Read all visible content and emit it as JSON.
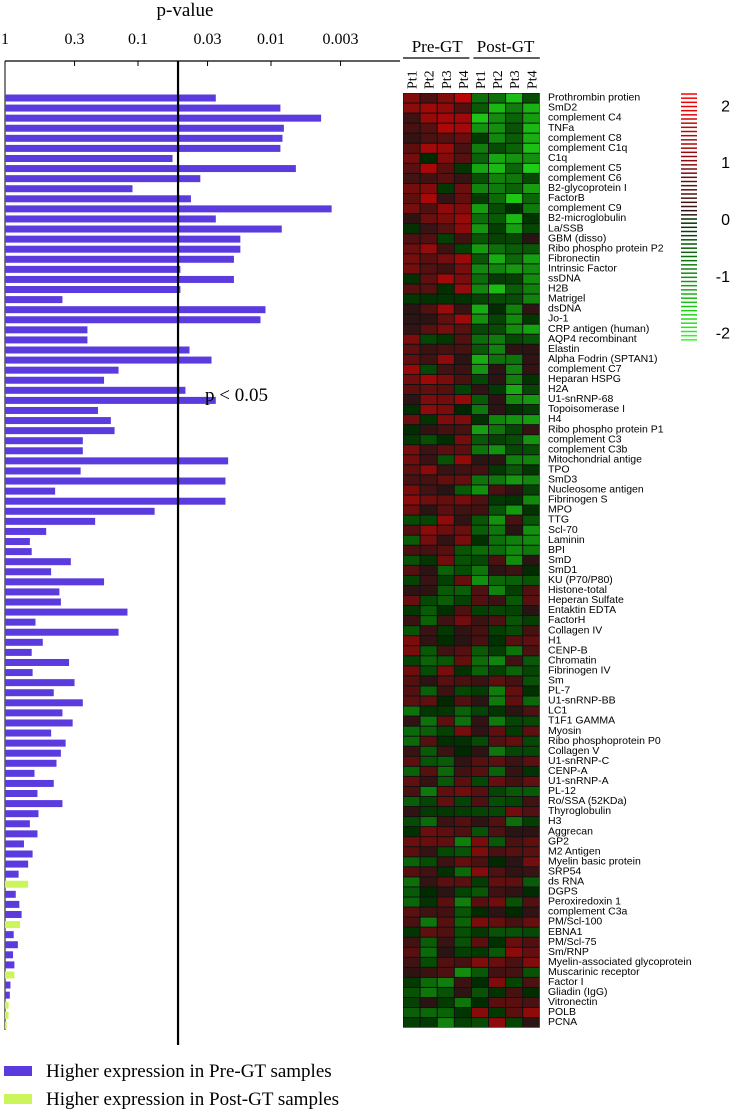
{
  "chart_data": {
    "type": "bar",
    "title": "p-value",
    "xscale": "log, reversed",
    "xticks": [
      "1",
      "0.3",
      "0.1",
      "0.03",
      "0.01",
      "0.003"
    ],
    "threshold": {
      "p": 0.05,
      "label": "p < 0.05"
    },
    "series": [
      {
        "name": "Higher expression in Pre-GT samples",
        "color": "#5b3bde"
      },
      {
        "name": "Higher expression in Post-GT samples",
        "color": "#ccf55c"
      }
    ],
    "categories": [
      "Prothrombin protien",
      "SmD2",
      "complement C4",
      "TNFa",
      "complement C8",
      "complement C1q",
      "C1q",
      "complement C5",
      "complement C6",
      "B2-glycoprotein I",
      "FactorB",
      "complement C9",
      "B2-microglobulin",
      "La/SSB",
      "GBM (disso)",
      "Ribo phospho protein P2",
      "Fibronectin",
      "Intrinsic Factor",
      "ssDNA",
      "H2B",
      "Matrigel",
      "dsDNA",
      "Jo-1",
      "CRP antigen (human)",
      "AQP4 recombinant",
      "Elastin",
      "Alpha Fodrin (SPTAN1)",
      "complement C7",
      "Heparan HSPG",
      "H2A",
      "U1-snRNP-68",
      "Topoisomerase I",
      "H4",
      "Ribo phospho protein P1",
      "complement C3",
      "complement C3b",
      "Mitochondrial antige",
      "TPO",
      "SmD3",
      "Nucleosome antigen",
      "Fibrinogen S",
      "MPO",
      "TTG",
      "Scl-70",
      "Laminin",
      "BPI",
      "SmD",
      "SmD1",
      "KU (P70/P80)",
      "Histone-total",
      "Heperan Sulfate",
      "Entaktin EDTA",
      "FactorH",
      "Collagen IV",
      "H1",
      "CENP-B",
      "Chromatin",
      "Fibrinogen IV",
      "Sm",
      "PL-7",
      "U1-snRNP-BB",
      "LC1",
      "T1F1 GAMMA",
      "Myosin",
      "Ribo phosphoprotein P0",
      "Collagen V",
      "U1-snRNP-C",
      "CENP-A",
      "U1-snRNP-A",
      "PL-12",
      "Ro/SSA (52KDa)",
      "Thyroglobulin",
      "H3",
      "Aggrecan",
      "GP2",
      "M2 Antigen",
      "Myelin basic protein",
      "SRP54",
      "ds RNA",
      "DGPS",
      "Peroxiredoxin 1",
      "complement C3a",
      "PM/Scl-100",
      "EBNA1",
      "PM/Scl-75",
      "Sm/RNP",
      "Myelin-associated glycoprotein",
      "Muscarinic receptor",
      "Factor I",
      "Gliadin (IgG)",
      "Vitronectin",
      "POLB",
      "PCNA"
    ],
    "pvalues": [
      0.026,
      0.0085,
      0.0042,
      0.008,
      0.0082,
      0.0085,
      0.055,
      0.0065,
      0.034,
      0.11,
      0.04,
      0.0035,
      0.026,
      0.0083,
      0.017,
      0.017,
      0.019,
      0.048,
      0.019,
      0.048,
      0.37,
      0.011,
      0.012,
      0.24,
      0.24,
      0.041,
      0.028,
      0.14,
      0.18,
      0.044,
      0.026,
      0.2,
      0.16,
      0.15,
      0.26,
      0.26,
      0.021,
      0.27,
      0.022,
      0.42,
      0.022,
      0.075,
      0.21,
      0.49,
      0.65,
      0.63,
      0.32,
      0.45,
      0.18,
      0.39,
      0.38,
      0.12,
      0.59,
      0.14,
      0.52,
      0.63,
      0.33,
      0.62,
      0.3,
      0.43,
      0.26,
      0.37,
      0.31,
      0.45,
      0.35,
      0.38,
      0.41,
      0.6,
      0.43,
      0.57,
      0.37,
      0.56,
      0.65,
      0.57,
      0.72,
      0.62,
      0.67,
      0.79,
      0.67,
      0.83,
      0.78,
      0.75,
      0.77,
      0.86,
      0.8,
      0.87,
      0.85,
      0.85,
      0.91,
      0.92,
      0.94,
      0.94,
      0.97
    ],
    "direction": [
      "pre",
      "pre",
      "pre",
      "pre",
      "pre",
      "pre",
      "pre",
      "pre",
      "pre",
      "pre",
      "pre",
      "pre",
      "pre",
      "pre",
      "pre",
      "pre",
      "pre",
      "pre",
      "pre",
      "pre",
      "pre",
      "pre",
      "pre",
      "pre",
      "pre",
      "pre",
      "pre",
      "pre",
      "pre",
      "pre",
      "pre",
      "pre",
      "pre",
      "pre",
      "pre",
      "pre",
      "pre",
      "pre",
      "pre",
      "pre",
      "pre",
      "pre",
      "pre",
      "pre",
      "pre",
      "pre",
      "pre",
      "pre",
      "pre",
      "pre",
      "pre",
      "pre",
      "pre",
      "pre",
      "pre",
      "pre",
      "pre",
      "pre",
      "pre",
      "pre",
      "pre",
      "pre",
      "pre",
      "pre",
      "pre",
      "pre",
      "pre",
      "pre",
      "pre",
      "pre",
      "pre",
      "pre",
      "pre",
      "pre",
      "pre",
      "pre",
      "pre",
      "pre",
      "post",
      "pre",
      "pre",
      "pre",
      "post",
      "pre",
      "pre",
      "pre",
      "pre",
      "post",
      "pre",
      "pre",
      "post",
      "post",
      "post"
    ],
    "heatmap": {
      "groups": [
        "Pre-GT",
        "Post-GT"
      ],
      "columns": [
        "Pt1",
        "Pt2",
        "Pt3",
        "Pt4",
        "Pt1",
        "Pt2",
        "Pt3",
        "Pt4"
      ],
      "colorbar_ticks": [
        "2",
        "1",
        "0",
        "-1",
        "-2"
      ],
      "range": [
        -2.2,
        2.2
      ]
    }
  },
  "legend": {
    "pre": "Higher expression in Pre-GT samples",
    "post": "Higher expression in Post-GT samples"
  }
}
